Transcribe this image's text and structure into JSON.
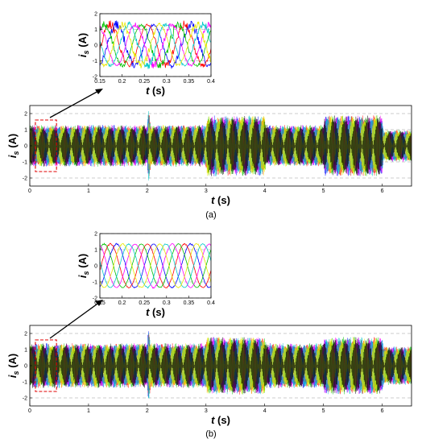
{
  "figure": {
    "caption_a": "(a)",
    "caption_b": "(b)"
  },
  "chart_data": [
    {
      "id": "a_inset",
      "type": "line",
      "xlabel_main": "t",
      "xlabel_unit": " (s)",
      "ylabel_main": "i",
      "ylabel_sub": "s",
      "ylabel_unit": " (A)",
      "xlim": [
        0.15,
        0.4
      ],
      "ylim": [
        -2,
        2
      ],
      "xticks": [
        0.15,
        0.2,
        0.25,
        0.3,
        0.35,
        0.4
      ],
      "xticklabels": [
        "0.15",
        "0.2",
        "0.25",
        "0.3",
        "0.35",
        "0.4"
      ],
      "yticks": [
        -2,
        -1,
        0,
        1,
        2
      ],
      "yticklabels": [
        "-2",
        "-1",
        "0",
        "1",
        "2"
      ],
      "grid": true,
      "phases": 6,
      "amplitude": 1.3,
      "frequency_hz": 12,
      "noise": 0.35,
      "series_colors": [
        "#0000ff",
        "#ff0000",
        "#00c000",
        "#ff00ff",
        "#00c8c8",
        "#e8e800",
        "#000000"
      ]
    },
    {
      "id": "a_main",
      "type": "line",
      "xlabel_main": "t",
      "xlabel_unit": " (s)",
      "ylabel_main": "i",
      "ylabel_sub": "s",
      "ylabel_unit": " (A)",
      "xlim": [
        0,
        6.5
      ],
      "ylim": [
        -2.5,
        2.5
      ],
      "xticks": [
        0,
        1,
        2,
        3,
        4,
        5,
        6
      ],
      "xticklabels": [
        "0",
        "1",
        "2",
        "3",
        "4",
        "5",
        "6"
      ],
      "yticks": [
        -2,
        -1,
        0,
        1,
        2
      ],
      "yticklabels": [
        "-2",
        "-1",
        "0",
        "1",
        "2"
      ],
      "grid": true,
      "zoom_region": [
        0.15,
        0.4
      ],
      "envelope": [
        [
          0,
          1.3
        ],
        [
          2,
          1.3
        ],
        [
          2.02,
          2.5
        ],
        [
          2.06,
          1.3
        ],
        [
          3,
          1.3
        ],
        [
          3.02,
          1.9
        ],
        [
          4,
          1.9
        ],
        [
          4.02,
          1.3
        ],
        [
          5,
          1.3
        ],
        [
          5.02,
          1.9
        ],
        [
          6,
          1.9
        ],
        [
          6.02,
          1.0
        ],
        [
          6.5,
          1.0
        ]
      ],
      "series_colors": [
        "#0000ff",
        "#ff0000",
        "#00c000",
        "#ff00ff",
        "#00c8c8",
        "#e8e800",
        "#000000"
      ]
    },
    {
      "id": "b_inset",
      "type": "line",
      "xlabel_main": "t",
      "xlabel_unit": " (s)",
      "ylabel_main": "i",
      "ylabel_sub": "s",
      "ylabel_unit": " (A)",
      "xlim": [
        0.15,
        0.4
      ],
      "ylim": [
        -2,
        2
      ],
      "xticks": [
        0.15,
        0.2,
        0.25,
        0.3,
        0.35,
        0.4
      ],
      "xticklabels": [
        "0.15",
        "0.2",
        "0.25",
        "0.3",
        "0.35",
        "0.4"
      ],
      "yticks": [
        -2,
        -1,
        0,
        1,
        2
      ],
      "yticklabels": [
        "-2",
        "-1",
        "0",
        "1",
        "2"
      ],
      "grid": true,
      "phases": 6,
      "amplitude": 1.35,
      "frequency_hz": 12,
      "noise": 0.06,
      "series_colors": [
        "#0000ff",
        "#ff0000",
        "#00c000",
        "#ff00ff",
        "#00c8c8",
        "#e8e800",
        "#000000"
      ]
    },
    {
      "id": "b_main",
      "type": "line",
      "xlabel_main": "t",
      "xlabel_unit": " (s)",
      "ylabel_main": "i",
      "ylabel_sub": "s",
      "ylabel_unit": " (A)",
      "xlim": [
        0,
        6.5
      ],
      "ylim": [
        -2.5,
        2.5
      ],
      "xticks": [
        0,
        1,
        2,
        3,
        4,
        5,
        6
      ],
      "xticklabels": [
        "0",
        "1",
        "2",
        "3",
        "4",
        "5",
        "6"
      ],
      "yticks": [
        -2,
        -1,
        0,
        1,
        2
      ],
      "yticklabels": [
        "-2",
        "-1",
        "0",
        "1",
        "2"
      ],
      "grid": true,
      "zoom_region": [
        0.15,
        0.4
      ],
      "envelope": [
        [
          0,
          1.4
        ],
        [
          2,
          1.4
        ],
        [
          2.02,
          2.5
        ],
        [
          2.06,
          1.4
        ],
        [
          3,
          1.4
        ],
        [
          3.02,
          1.8
        ],
        [
          4,
          1.8
        ],
        [
          4.02,
          1.4
        ],
        [
          5,
          1.4
        ],
        [
          5.02,
          1.8
        ],
        [
          6,
          1.8
        ],
        [
          6.02,
          1.2
        ],
        [
          6.5,
          1.2
        ]
      ],
      "series_colors": [
        "#0000ff",
        "#ff0000",
        "#00c000",
        "#ff00ff",
        "#00c8c8",
        "#e8e800",
        "#000000"
      ]
    }
  ]
}
